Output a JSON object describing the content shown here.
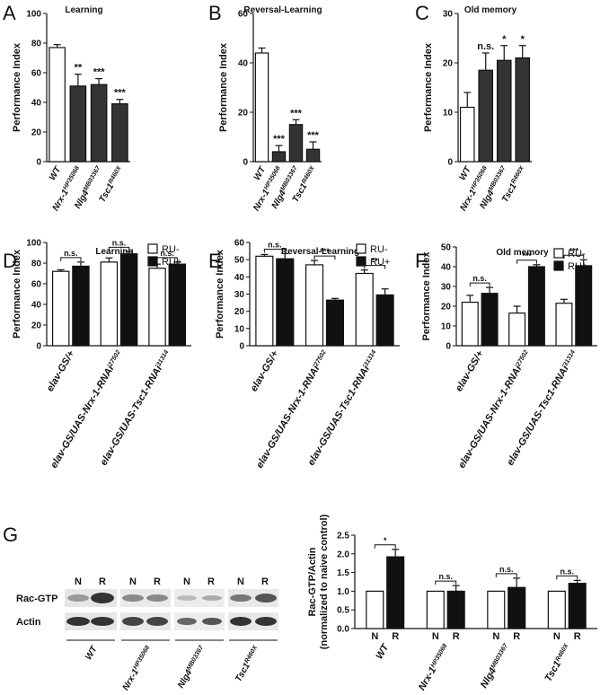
{
  "chart_data": [
    {
      "type": "bar",
      "panel": "A",
      "title": "Learning",
      "ylabel": "Performance Index",
      "categories": [
        "WT",
        "Nrx-1",
        "Nlg4",
        "Tsc1"
      ],
      "category_superscripts": [
        null,
        "HP35068",
        "MB03367",
        "R460X"
      ],
      "values": [
        77,
        51,
        52,
        39
      ],
      "errors": [
        2,
        8,
        4,
        3
      ],
      "colors": [
        "#ffffff",
        "#333333",
        "#333333",
        "#333333"
      ],
      "significance": [
        null,
        "**",
        "***",
        "***"
      ],
      "ylim": [
        0,
        100
      ],
      "yticks": [
        0,
        20,
        40,
        60,
        80,
        100
      ]
    },
    {
      "type": "bar",
      "panel": "B",
      "title": "Reversal-Learning",
      "ylabel": "Performance Index",
      "categories": [
        "WT",
        "Nrx-1",
        "Nlg4",
        "Tsc1"
      ],
      "category_superscripts": [
        null,
        "HP35068",
        "MB03367",
        "R460X"
      ],
      "values": [
        44,
        4,
        15,
        5
      ],
      "errors": [
        2,
        2.5,
        2,
        3
      ],
      "colors": [
        "#ffffff",
        "#333333",
        "#333333",
        "#333333"
      ],
      "significance": [
        null,
        "***",
        "***",
        "***"
      ],
      "ylim": [
        0,
        60
      ],
      "yticks": [
        0,
        20,
        40,
        60
      ]
    },
    {
      "type": "bar",
      "panel": "C",
      "title": "Old memory",
      "ylabel": "Performance Index",
      "categories": [
        "WT",
        "Nrx-1",
        "Nlg4",
        "Tsc1"
      ],
      "category_superscripts": [
        null,
        "HP35068",
        "MB03367",
        "R460X"
      ],
      "values": [
        11,
        18.5,
        20.5,
        21
      ],
      "errors": [
        3,
        3.5,
        3,
        2.5
      ],
      "colors": [
        "#ffffff",
        "#333333",
        "#333333",
        "#333333"
      ],
      "significance": [
        null,
        "n.s.",
        "*",
        "*"
      ],
      "ylim": [
        0,
        30
      ],
      "yticks": [
        0,
        10,
        20,
        30
      ]
    },
    {
      "type": "bar",
      "panel": "D",
      "title": "Learning",
      "ylabel": "Performance Index",
      "categories": [
        "elav-GS/+",
        "elav-GS/UAS-Nrx-1-RNAi",
        "elav-GS/UAS-Tsc1-RNAi"
      ],
      "category_superscripts": [
        null,
        "27502",
        "31314"
      ],
      "series": [
        {
          "name": "RU-",
          "color": "#ffffff",
          "values": [
            72,
            81,
            75
          ],
          "errors": [
            1.5,
            4,
            4
          ]
        },
        {
          "name": "RU+",
          "color": "#111111",
          "values": [
            77,
            89,
            79
          ],
          "errors": [
            4,
            2,
            2
          ]
        }
      ],
      "significance": [
        "n.s.",
        "n.s.",
        "n.s."
      ],
      "legend": "upper right",
      "ylim": [
        0,
        100
      ],
      "yticks": [
        0,
        20,
        40,
        60,
        80,
        100
      ]
    },
    {
      "type": "bar",
      "panel": "E",
      "title": "Reversal-Learning",
      "ylabel": "Performance Index",
      "categories": [
        "elav-GS/+",
        "elav-GS/UAS-Nrx-1-RNAi",
        "elav-GS/UAS-Tsc1-RNAi"
      ],
      "category_superscripts": [
        null,
        "27502",
        "31314"
      ],
      "series": [
        {
          "name": "RU-",
          "color": "#ffffff",
          "values": [
            52,
            47,
            42
          ],
          "errors": [
            1,
            2.5,
            2
          ]
        },
        {
          "name": "RU+",
          "color": "#111111",
          "values": [
            50.5,
            26.5,
            29.5
          ],
          "errors": [
            3,
            1,
            3.5
          ]
        }
      ],
      "significance": [
        "n.s.",
        "***",
        "**"
      ],
      "legend": "upper right",
      "ylim": [
        0,
        60
      ],
      "yticks": [
        0,
        10,
        20,
        30,
        40,
        50,
        60
      ]
    },
    {
      "type": "bar",
      "panel": "F",
      "title": "Old memory",
      "ylabel": "Performance Index",
      "categories": [
        "elav-GS/+",
        "elav-GS/UAS-Nrx-1-RNAi",
        "elav-GS/UAS-Tsc1-RNAi"
      ],
      "category_superscripts": [
        null,
        "27502",
        "31314"
      ],
      "series": [
        {
          "name": "RU-",
          "color": "#ffffff",
          "values": [
            22,
            16.5,
            21.5
          ],
          "errors": [
            3.5,
            3.5,
            2
          ]
        },
        {
          "name": "RU+",
          "color": "#111111",
          "values": [
            26.5,
            40,
            40.5
          ],
          "errors": [
            3,
            1,
            3
          ]
        }
      ],
      "significance": [
        "n.s.",
        "***",
        "***"
      ],
      "legend": "upper right",
      "ylim": [
        0,
        50
      ],
      "yticks": [
        0,
        10,
        20,
        30,
        40,
        50
      ]
    },
    {
      "type": "bar",
      "panel": "G",
      "ylabel": [
        "Rac-GTP/Actin",
        "(normalized to naive control)"
      ],
      "categories": [
        "WT",
        "Nrx-1",
        "Nlg4",
        "Tsc1"
      ],
      "category_superscripts": [
        null,
        "HP35068",
        "MB03367",
        "R460X"
      ],
      "series": [
        {
          "name": "N",
          "color": "#ffffff",
          "values": [
            1.0,
            1.0,
            1.0,
            1.0
          ],
          "errors": [
            null,
            null,
            null,
            null
          ]
        },
        {
          "name": "R",
          "color": "#111111",
          "values": [
            1.92,
            1.0,
            1.1,
            1.21
          ],
          "errors": [
            0.2,
            0.15,
            0.25,
            0.08
          ]
        }
      ],
      "significance": [
        "*",
        "n.s.",
        "n.s.",
        "n.s."
      ],
      "bar_labels": true,
      "ylim": [
        0,
        2.5
      ],
      "yticks": [
        {
          "value": 0,
          "label": "0.0"
        },
        {
          "value": 0.5,
          "label": "0.5"
        },
        {
          "value": 1,
          "label": "1.0"
        },
        {
          "value": 1.5,
          "label": "1.5"
        },
        {
          "value": 2,
          "label": "2.0"
        },
        {
          "value": 2.5,
          "label": "2.5"
        }
      ]
    }
  ],
  "blot": {
    "rows": [
      "Rac-GTP",
      "Actin"
    ]
  }
}
